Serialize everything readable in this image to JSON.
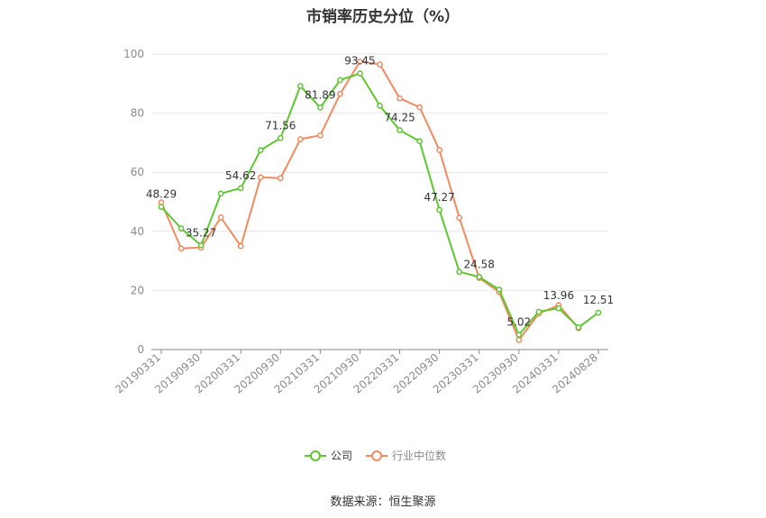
{
  "title": "市销率历史分位（%）",
  "source": "数据来源：恒生聚源",
  "colors": {
    "company": "#5cc82d",
    "industry": "#f5895f",
    "grid": "#e3e6ee",
    "axis": "#8a8a8a"
  },
  "chart_data": {
    "type": "line",
    "title": "市销率历史分位（%）",
    "ylim": [
      0,
      100
    ],
    "yticks": [
      0,
      20,
      40,
      60,
      80,
      100
    ],
    "grid": true,
    "legend_position": "bottom",
    "x_labels": [
      "20190331",
      "20190930",
      "20200331",
      "20200930",
      "20210331",
      "20210930",
      "20220331",
      "20220930",
      "20230331",
      "20230930",
      "20240331",
      "20240828"
    ],
    "series": [
      {
        "name": "公司",
        "values": [
          48.29,
          41.0,
          35.27,
          52.8,
          54.62,
          67.5,
          71.56,
          89.2,
          81.89,
          91.2,
          93.45,
          82.5,
          74.25,
          70.5,
          47.27,
          26.3,
          24.58,
          20.3,
          5.02,
          12.8,
          13.96,
          7.5,
          12.51
        ]
      },
      {
        "name": "行业中位数",
        "values": [
          49.8,
          34.2,
          34.5,
          44.7,
          35.0,
          58.3,
          58.0,
          71.2,
          72.5,
          86.5,
          97.5,
          96.5,
          85.0,
          82.0,
          67.5,
          44.6,
          24.2,
          19.5,
          3.2,
          12.2,
          15.0,
          7.2,
          null
        ]
      }
    ],
    "data_labels": [
      {
        "index": 0,
        "text": "48.29"
      },
      {
        "index": 2,
        "text": "35.27"
      },
      {
        "index": 4,
        "text": "54.62"
      },
      {
        "index": 6,
        "text": "71.56"
      },
      {
        "index": 8,
        "text": "81.89"
      },
      {
        "index": 10,
        "text": "93.45"
      },
      {
        "index": 12,
        "text": "74.25"
      },
      {
        "index": 14,
        "text": "47.27"
      },
      {
        "index": 16,
        "text": "24.58"
      },
      {
        "index": 18,
        "text": "5.02"
      },
      {
        "index": 20,
        "text": "13.96"
      },
      {
        "index": 22,
        "text": "12.51"
      }
    ]
  }
}
